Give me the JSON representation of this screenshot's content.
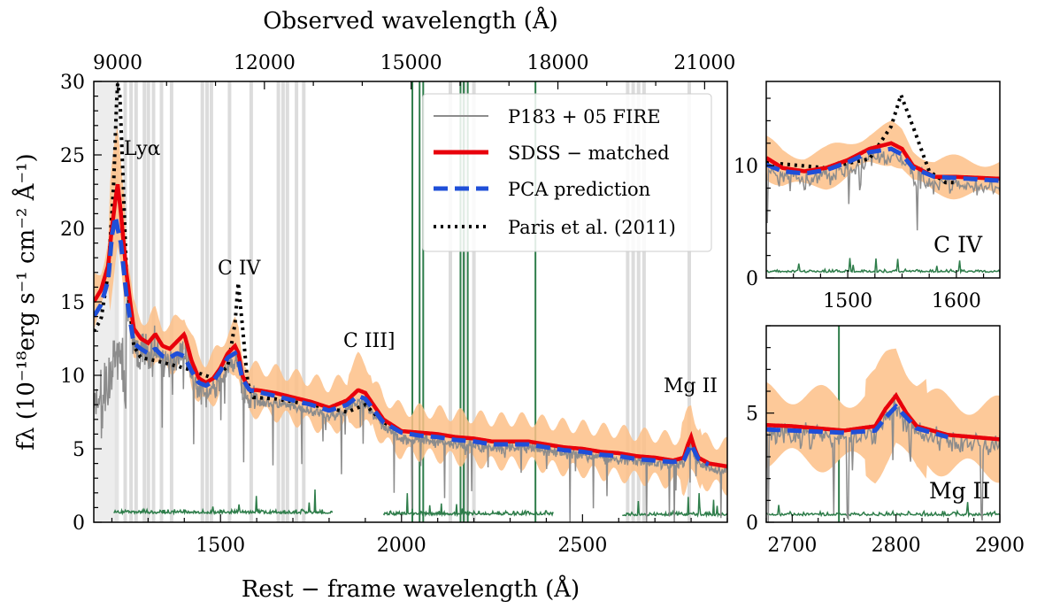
{
  "chart_data": [
    {
      "type": "line",
      "panel": "main",
      "title": "",
      "xlabel": "Rest − frame wavelength (Å)",
      "ylabel": "fλ (10⁻¹⁸erg s⁻¹ cm⁻² Å⁻¹)",
      "x2label": "Observed wavelength (Å)",
      "xlim": [
        1150,
        2900
      ],
      "ylim": [
        0,
        30
      ],
      "xticks": [
        1500,
        2000,
        2500
      ],
      "yticks": [
        0,
        5,
        10,
        15,
        20,
        25,
        30
      ],
      "x2ticks": [
        9000,
        12000,
        15000,
        18000,
        21000
      ],
      "legend": {
        "placement": "top-right",
        "entries": [
          "P183 + 05 FIRE",
          "SDSS − matched",
          "PCA prediction",
          "Paris et al. (2011)"
        ]
      },
      "annotations": [
        {
          "text": "Lyα",
          "x": 1240,
          "y": 25.5
        },
        {
          "text": "C IV",
          "x": 1520,
          "y": 16.8
        },
        {
          "text": "C III]",
          "x": 1880,
          "y": 11.8
        },
        {
          "text": "Mg II",
          "x": 2780,
          "y": 9.6
        }
      ],
      "series": [
        {
          "name": "SDSS − matched",
          "color": "#e8000b",
          "x": [
            1150,
            1170,
            1190,
            1200,
            1210,
            1216,
            1225,
            1240,
            1260,
            1280,
            1300,
            1320,
            1340,
            1360,
            1380,
            1400,
            1420,
            1440,
            1460,
            1480,
            1500,
            1520,
            1540,
            1550,
            1560,
            1580,
            1600,
            1650,
            1700,
            1750,
            1800,
            1850,
            1880,
            1900,
            1950,
            2000,
            2050,
            2100,
            2150,
            2200,
            2250,
            2300,
            2350,
            2400,
            2450,
            2500,
            2550,
            2600,
            2650,
            2700,
            2750,
            2780,
            2790,
            2800,
            2810,
            2820,
            2850,
            2900
          ],
          "y": [
            15,
            15.8,
            17.5,
            20,
            22,
            23,
            21,
            17,
            13.2,
            12.5,
            12.2,
            12.8,
            12,
            11.8,
            12.3,
            12.8,
            11,
            9.8,
            9.5,
            9.8,
            10.5,
            11.5,
            12,
            11.5,
            10,
            9,
            9,
            8.8,
            8.5,
            8.2,
            7.8,
            8.3,
            9,
            8.8,
            7,
            6.2,
            6.1,
            6,
            5.8,
            5.7,
            5.5,
            5.5,
            5.5,
            5.3,
            5.1,
            5.0,
            4.8,
            4.7,
            4.5,
            4.4,
            4.2,
            4.4,
            5.2,
            5.8,
            5.0,
            4.4,
            4.0,
            3.8
          ]
        },
        {
          "name": "PCA prediction",
          "color": "#1f4fd8",
          "x": [
            1150,
            1170,
            1190,
            1200,
            1210,
            1216,
            1225,
            1240,
            1260,
            1280,
            1300,
            1320,
            1340,
            1360,
            1380,
            1400,
            1420,
            1440,
            1460,
            1480,
            1500,
            1520,
            1540,
            1550,
            1560,
            1580,
            1600,
            1650,
            1700,
            1750,
            1800,
            1850,
            1880,
            1900,
            1950,
            2000,
            2050,
            2100,
            2150,
            2200,
            2250,
            2300,
            2350,
            2400,
            2450,
            2500,
            2550,
            2600,
            2650,
            2700,
            2750,
            2780,
            2790,
            2800,
            2810,
            2820,
            2850,
            2900
          ],
          "y": [
            14,
            14.8,
            16.5,
            19.5,
            20.8,
            20,
            19,
            15.5,
            12.2,
            11.8,
            11.5,
            11.8,
            11.3,
            11.2,
            11.5,
            11.3,
            10.3,
            9.5,
            9.3,
            9.6,
            10.3,
            11.2,
            11.5,
            11,
            9.8,
            9,
            8.9,
            8.6,
            8.3,
            8.0,
            7.6,
            8.0,
            8.6,
            8.4,
            6.8,
            6.1,
            5.9,
            5.8,
            5.6,
            5.5,
            5.3,
            5.3,
            5.3,
            5.1,
            4.9,
            4.8,
            4.6,
            4.5,
            4.3,
            4.2,
            4.1,
            4.2,
            4.8,
            5.3,
            4.8,
            4.3,
            3.9,
            3.7
          ]
        },
        {
          "name": "Paris et al. (2011)",
          "color": "#000000",
          "x": [
            1150,
            1170,
            1190,
            1205,
            1215,
            1222,
            1230,
            1240,
            1260,
            1280,
            1320,
            1400,
            1480,
            1520,
            1540,
            1549,
            1560,
            1575,
            1590,
            1650,
            1750,
            1850,
            1900,
            1950,
            2000
          ],
          "y": [
            13,
            13.8,
            17,
            23,
            30,
            29,
            24,
            17,
            12,
            11.2,
            11,
            10.5,
            9.8,
            10.6,
            13.5,
            16.3,
            13.5,
            9.5,
            8.5,
            8.4,
            8.0,
            7.5,
            8.0,
            6.8,
            6.2
          ]
        }
      ]
    },
    {
      "type": "line",
      "panel": "inset-civ",
      "title": "",
      "xlim": [
        1425,
        1640
      ],
      "ylim": [
        0,
        17.5
      ],
      "xticks": [
        1500,
        1600
      ],
      "yticks": [
        0,
        10
      ],
      "annotations": [
        {
          "text": "C IV"
        }
      ]
    },
    {
      "type": "line",
      "panel": "inset-mgii",
      "title": "",
      "xlim": [
        2675,
        2900
      ],
      "ylim": [
        0,
        9
      ],
      "xticks": [
        2700,
        2800,
        2900
      ],
      "yticks": [
        0,
        5
      ],
      "annotations": [
        {
          "text": "Mg II"
        }
      ]
    }
  ]
}
